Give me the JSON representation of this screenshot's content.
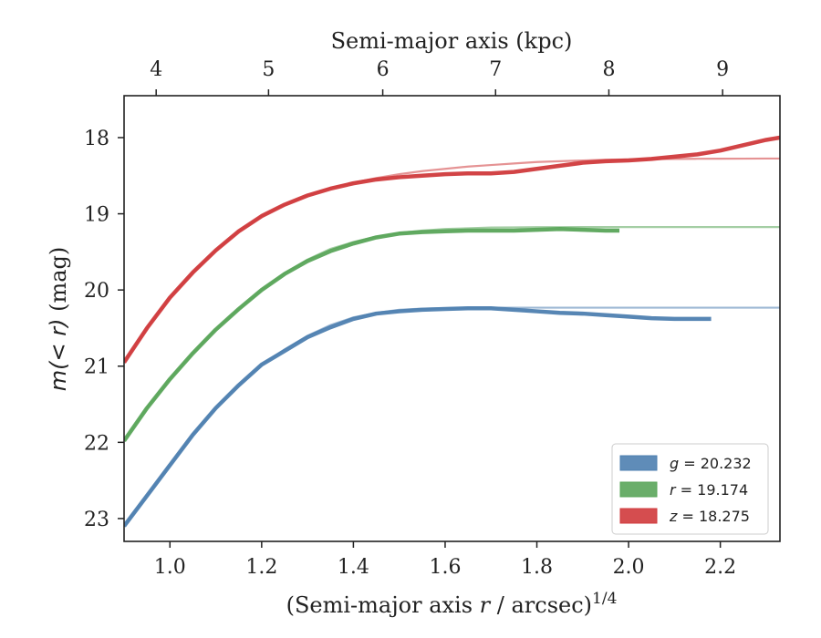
{
  "chart_data": {
    "type": "line",
    "xlabel": "(Semi-major axis r / arcsec)^1/4",
    "xlabel_parts": {
      "prefix": "(Semi-major axis ",
      "var": "r",
      "mid": " / arcsec)",
      "sup": "1/4"
    },
    "ylabel": "m(<r) (mag)",
    "ylabel_parts": {
      "math": "m(< r)",
      "unit": " (mag)"
    },
    "top_xlabel": "Semi-major axis (kpc)",
    "xlim": [
      0.9,
      2.33
    ],
    "ylim": [
      23.3,
      17.45
    ],
    "y_inverted": true,
    "xticks": [
      1.0,
      1.2,
      1.4,
      1.6,
      1.8,
      2.0,
      2.2
    ],
    "xtick_labels": [
      "1.0",
      "1.2",
      "1.4",
      "1.6",
      "1.8",
      "2.0",
      "2.2"
    ],
    "yticks": [
      18,
      19,
      20,
      21,
      22,
      23
    ],
    "ytick_labels": [
      "18",
      "19",
      "20",
      "21",
      "22",
      "23"
    ],
    "top_ticks_kpc": [
      4,
      5,
      6,
      7,
      8,
      9
    ],
    "top_tick_labels": [
      "4",
      "5",
      "6",
      "7",
      "8",
      "9"
    ],
    "top_tick_positions_x": [
      0.97,
      1.215,
      1.464,
      1.71,
      1.957,
      2.205
    ],
    "legend_position": "lower-right",
    "series": [
      {
        "name": "g = 20.232",
        "band": "g",
        "value": "20.232",
        "color": "#4e7fb0",
        "x": [
          0.9,
          0.95,
          1.0,
          1.05,
          1.1,
          1.15,
          1.2,
          1.25,
          1.3,
          1.35,
          1.4,
          1.45,
          1.5,
          1.55,
          1.6,
          1.65,
          1.7,
          1.75,
          1.8,
          1.85,
          1.9,
          1.95,
          2.0,
          2.05,
          2.1,
          2.15,
          2.18
        ],
        "y": [
          23.1,
          22.7,
          22.3,
          21.9,
          21.55,
          21.25,
          20.98,
          20.8,
          20.62,
          20.49,
          20.38,
          20.31,
          20.28,
          20.26,
          20.25,
          20.24,
          20.24,
          20.26,
          20.28,
          20.3,
          20.31,
          20.33,
          20.35,
          20.37,
          20.38,
          20.38,
          20.38
        ],
        "fit": [
          23.1,
          22.7,
          22.3,
          21.9,
          21.55,
          21.25,
          20.98,
          20.78,
          20.6,
          20.46,
          20.36,
          20.3,
          20.26,
          20.245,
          20.238,
          20.235,
          20.233,
          20.232,
          20.232,
          20.232,
          20.232,
          20.232,
          20.232,
          20.232,
          20.232,
          20.232,
          20.232
        ]
      },
      {
        "name": "r = 19.174",
        "band": "r",
        "value": "19.174",
        "color": "#5aa55a",
        "x": [
          0.9,
          0.95,
          1.0,
          1.05,
          1.1,
          1.15,
          1.2,
          1.25,
          1.3,
          1.35,
          1.4,
          1.45,
          1.5,
          1.55,
          1.6,
          1.65,
          1.7,
          1.75,
          1.8,
          1.85,
          1.9,
          1.95,
          1.98
        ],
        "y": [
          21.98,
          21.55,
          21.17,
          20.83,
          20.52,
          20.25,
          20.0,
          19.79,
          19.62,
          19.49,
          19.39,
          19.31,
          19.26,
          19.24,
          19.23,
          19.22,
          19.22,
          19.22,
          19.21,
          19.2,
          19.21,
          19.22,
          19.22
        ],
        "fit": [
          21.98,
          21.55,
          21.17,
          20.83,
          20.52,
          20.25,
          20.0,
          19.78,
          19.6,
          19.46,
          19.37,
          19.3,
          19.25,
          19.22,
          19.2,
          19.19,
          19.18,
          19.178,
          19.176,
          19.175,
          19.174,
          19.174,
          19.174
        ]
      },
      {
        "name": "z = 18.275",
        "band": "z",
        "value": "18.275",
        "color": "#d03a3c",
        "x": [
          0.9,
          0.95,
          1.0,
          1.05,
          1.1,
          1.15,
          1.2,
          1.25,
          1.3,
          1.35,
          1.4,
          1.45,
          1.5,
          1.55,
          1.6,
          1.65,
          1.7,
          1.75,
          1.8,
          1.85,
          1.9,
          1.95,
          2.0,
          2.05,
          2.1,
          2.15,
          2.2,
          2.25,
          2.3,
          2.33
        ],
        "y": [
          20.95,
          20.5,
          20.1,
          19.77,
          19.48,
          19.23,
          19.03,
          18.88,
          18.76,
          18.67,
          18.6,
          18.55,
          18.52,
          18.5,
          18.48,
          18.47,
          18.47,
          18.45,
          18.41,
          18.37,
          18.33,
          18.31,
          18.3,
          18.28,
          18.25,
          18.22,
          18.17,
          18.1,
          18.03,
          18.0
        ],
        "fit": [
          20.95,
          20.5,
          20.1,
          19.77,
          19.48,
          19.23,
          19.03,
          18.88,
          18.76,
          18.66,
          18.59,
          18.53,
          18.48,
          18.44,
          18.41,
          18.38,
          18.36,
          18.34,
          18.32,
          18.31,
          18.3,
          18.29,
          18.285,
          18.282,
          18.28,
          18.278,
          18.277,
          18.276,
          18.275,
          18.275
        ]
      }
    ]
  }
}
